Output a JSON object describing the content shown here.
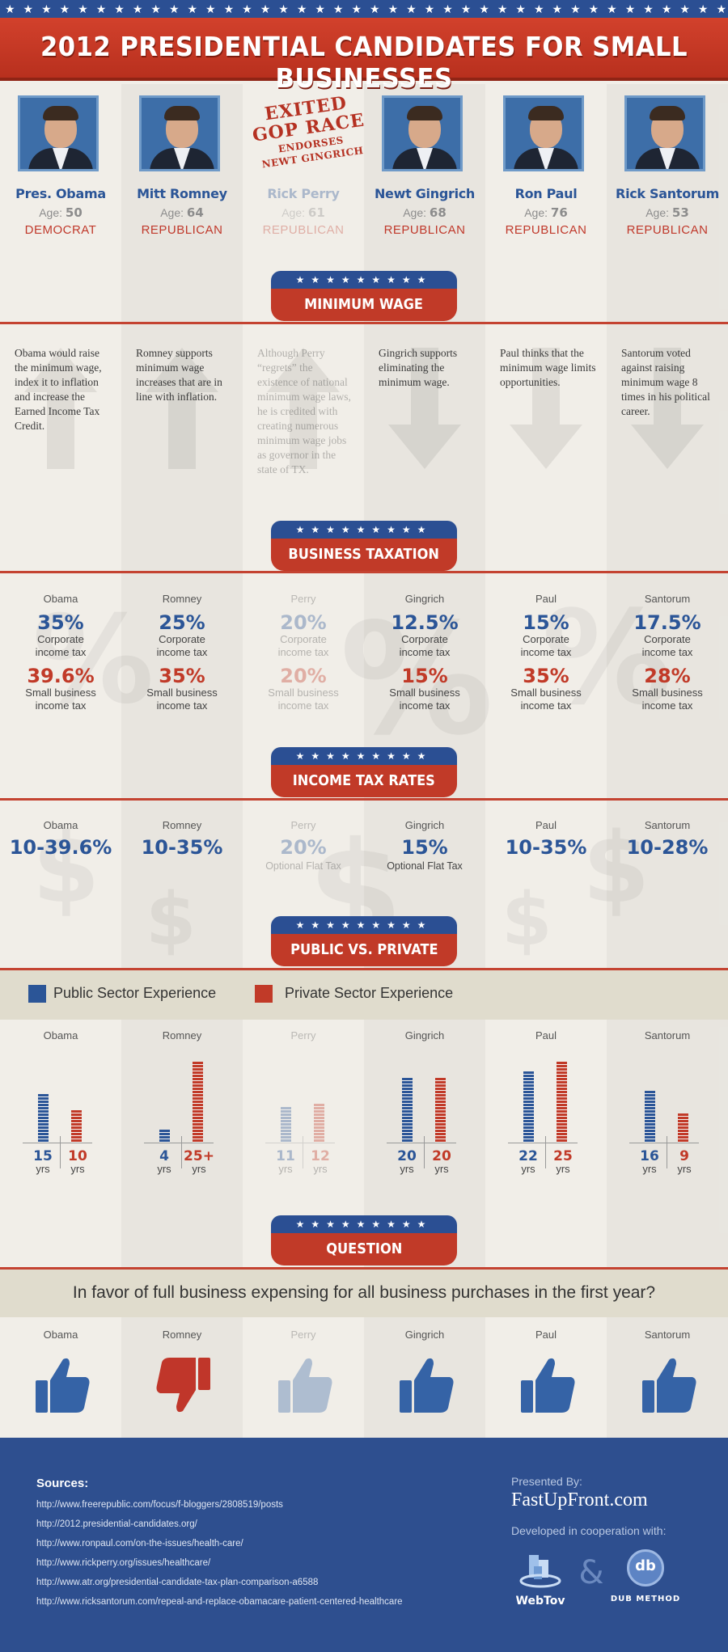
{
  "title": "2012 PRESIDENTIAL CANDIDATES FOR SMALL BUSINESSES",
  "colors": {
    "blue": "#2b5597",
    "red": "#c13a28",
    "navy": "#2e4f8f",
    "background": "#f1eee8"
  },
  "candidates": [
    {
      "name": "Pres. Obama",
      "age_label": "Age:",
      "age": "50",
      "party": "DEMOCRAT",
      "faded": false
    },
    {
      "name": "Mitt Romney",
      "age_label": "Age:",
      "age": "64",
      "party": "REPUBLICAN",
      "faded": false
    },
    {
      "name": "Rick Perry",
      "age_label": "Age:",
      "age": "61",
      "party": "REPUBLICAN",
      "faded": true
    },
    {
      "name": "Newt Gingrich",
      "age_label": "Age:",
      "age": "68",
      "party": "REPUBLICAN",
      "faded": false
    },
    {
      "name": "Ron Paul",
      "age_label": "Age:",
      "age": "76",
      "party": "REPUBLICAN",
      "faded": false
    },
    {
      "name": "Rick Santorum",
      "age_label": "Age:",
      "age": "53",
      "party": "REPUBLICAN",
      "faded": false
    }
  ],
  "exited_stamp": {
    "line1": "EXITED",
    "line2": "GOP RACE",
    "line3": "ENDORSES",
    "line4": "NEWT GINGRICH"
  },
  "sections": {
    "minimum_wage": "MINIMUM WAGE",
    "business_taxation": "BUSINESS TAXATION",
    "income_tax_rates": "INCOME TAX RATES",
    "public_private": "PUBLIC VS. PRIVATE",
    "question": "QUESTION"
  },
  "ribbon_stars": "★★★★★★★★★",
  "top_stars": "★★★★★★★★★★★★★★★★★★★★★★★★★★★★★★★★★★★★★★★★",
  "minimum_wage": [
    {
      "text": "Obama would raise the minimum wage, index it to inflation and increase the Earned Income Tax Credit.",
      "direction": "up"
    },
    {
      "text": "Romney supports minimum wage increases that are in line with inflation.",
      "direction": "up"
    },
    {
      "text": "Although Perry “regrets” the existence of national minimum wage laws, he is credited with creating numerous minimum wage jobs as governor in the state of TX.",
      "direction": "up"
    },
    {
      "text": "Gingrich supports eliminating the minimum wage.",
      "direction": "down"
    },
    {
      "text": "Paul thinks that the minimum wage limits opportunities.",
      "direction": "down"
    },
    {
      "text": "Santorum voted against raising minimum wage 8 times in his political career.",
      "direction": "down"
    }
  ],
  "short_names": [
    "Obama",
    "Romney",
    "Perry",
    "Gingrich",
    "Paul",
    "Santorum"
  ],
  "taxation": {
    "corporate_label_1": "Corporate",
    "corporate_label_2": "income tax",
    "small_label_1": "Small business",
    "small_label_2": "income tax",
    "corporate": [
      "35%",
      "25%",
      "20%",
      "12.5%",
      "15%",
      "17.5%"
    ],
    "small_business": [
      "39.6%",
      "35%",
      "20%",
      "15%",
      "35%",
      "28%"
    ]
  },
  "income_tax": {
    "rates": [
      "10-39.6%",
      "10-35%",
      "20%",
      "15%",
      "10-35%",
      "10-28%"
    ],
    "notes": [
      "",
      "",
      "Optional Flat Tax",
      "Optional Flat Tax",
      "",
      ""
    ]
  },
  "legend": {
    "public": "Public Sector Experience",
    "private": "Private Sector Experience"
  },
  "experience": {
    "unit": "yrs",
    "public_labels": [
      "15",
      "4",
      "11",
      "20",
      "22",
      "16"
    ],
    "private_labels": [
      "10",
      "25+",
      "12",
      "20",
      "25",
      "9"
    ],
    "public_years": [
      15,
      4,
      11,
      20,
      22,
      16
    ],
    "private_years": [
      10,
      25,
      12,
      20,
      25,
      9
    ]
  },
  "question_text": "In favor of full business expensing for all business purchases in the first year?",
  "answers": [
    "yes",
    "no",
    "yes",
    "yes",
    "yes",
    "yes"
  ],
  "footer": {
    "sources_title": "Sources:",
    "sources": [
      "http://www.freerepublic.com/focus/f-bloggers/2808519/posts",
      "http://2012.presidential-candidates.org/",
      "http://www.ronpaul.com/on-the-issues/health-care/",
      "http://www.rickperry.org/issues/healthcare/",
      "http://www.atr.org/presidential-candidate-tax-plan-comparison-a6588",
      "http://www.ricksantorum.com/repeal-and-replace-obamacare-patient-centered-healthcare"
    ],
    "presented_by": "Presented By:",
    "site": "FastUpFront.com",
    "developed": "Developed in cooperation with:",
    "logo1": "WebTov",
    "ampersand": "&",
    "logo2_mark": "db",
    "logo2": "DUB METHOD"
  }
}
